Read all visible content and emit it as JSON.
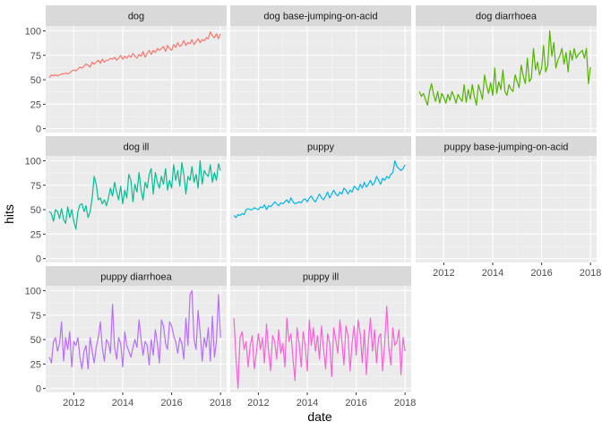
{
  "chart_data": {
    "type": "line",
    "xlabel": "date",
    "ylabel": "hits",
    "ylim": [
      -4,
      105
    ],
    "y_ticks": [
      0,
      25,
      50,
      75,
      100
    ],
    "x_ticks": [
      "2012",
      "2014",
      "2016",
      "2018"
    ],
    "x_range": [
      2010.85,
      2018.25
    ],
    "layout": "facet grid, 3 columns, 3 rows",
    "background": "#EBEBEB",
    "grid": "on",
    "legend": "none",
    "panels": [
      {
        "name": "dog",
        "color": "#F8766D",
        "x": [
          2011.0,
          2011.083,
          2011.167,
          2011.25,
          2011.333,
          2011.417,
          2011.5,
          2011.583,
          2011.667,
          2011.75,
          2011.833,
          2011.917,
          2012.0,
          2012.083,
          2012.167,
          2012.25,
          2012.333,
          2012.417,
          2012.5,
          2012.583,
          2012.667,
          2012.75,
          2012.833,
          2012.917,
          2013.0,
          2013.083,
          2013.167,
          2013.25,
          2013.333,
          2013.417,
          2013.5,
          2013.583,
          2013.667,
          2013.75,
          2013.833,
          2013.917,
          2014.0,
          2014.083,
          2014.167,
          2014.25,
          2014.333,
          2014.417,
          2014.5,
          2014.583,
          2014.667,
          2014.75,
          2014.833,
          2014.917,
          2015.0,
          2015.083,
          2015.167,
          2015.25,
          2015.333,
          2015.417,
          2015.5,
          2015.583,
          2015.667,
          2015.75,
          2015.833,
          2015.917,
          2016.0,
          2016.083,
          2016.167,
          2016.25,
          2016.333,
          2016.417,
          2016.5,
          2016.583,
          2016.667,
          2016.75,
          2016.833,
          2016.917,
          2017.0,
          2017.083,
          2017.167,
          2017.25,
          2017.333,
          2017.417,
          2017.5,
          2017.583,
          2017.667,
          2017.75,
          2017.833,
          2017.917,
          2018.0
        ],
        "y": [
          52,
          55,
          54,
          55,
          54,
          55,
          56,
          56,
          57,
          56,
          57,
          59,
          60,
          59,
          61,
          63,
          62,
          64,
          66,
          65,
          63,
          68,
          66,
          68,
          70,
          67,
          71,
          68,
          70,
          70,
          72,
          71,
          73,
          70,
          72,
          75,
          71,
          74,
          72,
          75,
          73,
          77,
          74,
          72,
          76,
          74,
          79,
          73,
          77,
          80,
          76,
          80,
          78,
          82,
          80,
          82,
          84,
          79,
          85,
          82,
          80,
          86,
          83,
          88,
          84,
          86,
          90,
          85,
          88,
          87,
          91,
          86,
          89,
          92,
          88,
          91,
          90,
          93,
          92,
          99,
          95,
          93,
          97,
          92,
          97
        ]
      },
      {
        "name": "dog base-jumping-on-acid",
        "color": "#C49A00",
        "x": [],
        "y": []
      },
      {
        "name": "dog diarrhoea",
        "color": "#53B400",
        "x": [
          2011.0,
          2011.083,
          2011.167,
          2011.25,
          2011.333,
          2011.417,
          2011.5,
          2011.583,
          2011.667,
          2011.75,
          2011.833,
          2011.917,
          2012.0,
          2012.083,
          2012.167,
          2012.25,
          2012.333,
          2012.417,
          2012.5,
          2012.583,
          2012.667,
          2012.75,
          2012.833,
          2012.917,
          2013.0,
          2013.083,
          2013.167,
          2013.25,
          2013.333,
          2013.417,
          2013.5,
          2013.583,
          2013.667,
          2013.75,
          2013.833,
          2013.917,
          2014.0,
          2014.083,
          2014.167,
          2014.25,
          2014.333,
          2014.417,
          2014.5,
          2014.583,
          2014.667,
          2014.75,
          2014.833,
          2014.917,
          2015.0,
          2015.083,
          2015.167,
          2015.25,
          2015.333,
          2015.417,
          2015.5,
          2015.583,
          2015.667,
          2015.75,
          2015.833,
          2015.917,
          2016.0,
          2016.083,
          2016.167,
          2016.25,
          2016.333,
          2016.417,
          2016.5,
          2016.583,
          2016.667,
          2016.75,
          2016.833,
          2016.917,
          2017.0,
          2017.083,
          2017.167,
          2017.25,
          2017.333,
          2017.417,
          2017.5,
          2017.583,
          2017.667,
          2017.75,
          2017.833,
          2017.917,
          2018.0
        ],
        "y": [
          38,
          33,
          36,
          30,
          24,
          38,
          46,
          35,
          28,
          38,
          26,
          36,
          32,
          26,
          35,
          29,
          38,
          33,
          26,
          35,
          31,
          28,
          45,
          27,
          40,
          30,
          45,
          33,
          24,
          45,
          38,
          30,
          55,
          44,
          36,
          47,
          34,
          62,
          36,
          48,
          40,
          60,
          38,
          34,
          45,
          40,
          38,
          55,
          48,
          42,
          65,
          54,
          46,
          72,
          48,
          52,
          82,
          60,
          68,
          55,
          62,
          85,
          58,
          64,
          100,
          74,
          88,
          62,
          70,
          75,
          82,
          66,
          78,
          58,
          80,
          70,
          82,
          72,
          76,
          78,
          80,
          72,
          82,
          46,
          63
        ]
      },
      {
        "name": "dog ill",
        "color": "#00C094",
        "x": [
          2011.0,
          2011.083,
          2011.167,
          2011.25,
          2011.333,
          2011.417,
          2011.5,
          2011.583,
          2011.667,
          2011.75,
          2011.833,
          2011.917,
          2012.0,
          2012.083,
          2012.167,
          2012.25,
          2012.333,
          2012.417,
          2012.5,
          2012.583,
          2012.667,
          2012.75,
          2012.833,
          2012.917,
          2013.0,
          2013.083,
          2013.167,
          2013.25,
          2013.333,
          2013.417,
          2013.5,
          2013.583,
          2013.667,
          2013.75,
          2013.833,
          2013.917,
          2014.0,
          2014.083,
          2014.167,
          2014.25,
          2014.333,
          2014.417,
          2014.5,
          2014.583,
          2014.667,
          2014.75,
          2014.833,
          2014.917,
          2015.0,
          2015.083,
          2015.167,
          2015.25,
          2015.333,
          2015.417,
          2015.5,
          2015.583,
          2015.667,
          2015.75,
          2015.833,
          2015.917,
          2016.0,
          2016.083,
          2016.167,
          2016.25,
          2016.333,
          2016.417,
          2016.5,
          2016.583,
          2016.667,
          2016.75,
          2016.833,
          2016.917,
          2017.0,
          2017.083,
          2017.167,
          2017.25,
          2017.333,
          2017.417,
          2017.5,
          2017.583,
          2017.667,
          2017.75,
          2017.833,
          2017.917,
          2018.0
        ],
        "y": [
          48,
          46,
          38,
          50,
          48,
          41,
          51,
          40,
          36,
          53,
          42,
          50,
          38,
          30,
          48,
          55,
          56,
          48,
          54,
          42,
          48,
          62,
          84,
          76,
          60,
          62,
          56,
          60,
          54,
          62,
          72,
          64,
          78,
          68,
          60,
          74,
          56,
          70,
          62,
          86,
          80,
          58,
          76,
          68,
          88,
          70,
          60,
          78,
          72,
          86,
          92,
          66,
          88,
          78,
          72,
          84,
          76,
          92,
          70,
          80,
          72,
          96,
          80,
          90,
          74,
          98,
          86,
          66,
          84,
          80,
          94,
          78,
          86,
          72,
          100,
          76,
          90,
          86,
          84,
          96,
          78,
          88,
          80,
          97,
          90
        ]
      },
      {
        "name": "puppy",
        "color": "#00B6EB",
        "x": [
          2011.0,
          2011.083,
          2011.167,
          2011.25,
          2011.333,
          2011.417,
          2011.5,
          2011.583,
          2011.667,
          2011.75,
          2011.833,
          2011.917,
          2012.0,
          2012.083,
          2012.167,
          2012.25,
          2012.333,
          2012.417,
          2012.5,
          2012.583,
          2012.667,
          2012.75,
          2012.833,
          2012.917,
          2013.0,
          2013.083,
          2013.167,
          2013.25,
          2013.333,
          2013.417,
          2013.5,
          2013.583,
          2013.667,
          2013.75,
          2013.833,
          2013.917,
          2014.0,
          2014.083,
          2014.167,
          2014.25,
          2014.333,
          2014.417,
          2014.5,
          2014.583,
          2014.667,
          2014.75,
          2014.833,
          2014.917,
          2015.0,
          2015.083,
          2015.167,
          2015.25,
          2015.333,
          2015.417,
          2015.5,
          2015.583,
          2015.667,
          2015.75,
          2015.833,
          2015.917,
          2016.0,
          2016.083,
          2016.167,
          2016.25,
          2016.333,
          2016.417,
          2016.5,
          2016.583,
          2016.667,
          2016.75,
          2016.833,
          2016.917,
          2017.0,
          2017.083,
          2017.167,
          2017.25,
          2017.333,
          2017.417,
          2017.5,
          2017.583,
          2017.667,
          2017.75,
          2017.833,
          2017.917,
          2018.0
        ],
        "y": [
          44,
          42,
          45,
          44,
          46,
          45,
          50,
          51,
          50,
          50,
          52,
          51,
          50,
          53,
          52,
          55,
          50,
          54,
          53,
          55,
          58,
          56,
          54,
          57,
          56,
          58,
          60,
          57,
          62,
          58,
          56,
          57,
          58,
          57,
          60,
          61,
          58,
          62,
          64,
          60,
          58,
          62,
          66,
          62,
          60,
          64,
          68,
          62,
          66,
          70,
          66,
          64,
          68,
          66,
          72,
          70,
          66,
          70,
          68,
          74,
          72,
          70,
          76,
          72,
          78,
          73,
          76,
          80,
          75,
          78,
          84,
          80,
          76,
          82,
          80,
          84,
          82,
          86,
          88,
          100,
          94,
          92,
          90,
          92,
          96
        ]
      },
      {
        "name": "puppy base-jumping-on-acid",
        "color": "#A58AFF",
        "x": [],
        "y": []
      },
      {
        "name": "puppy diarrhoea",
        "color": "#B76EFF",
        "x": [
          2011.0,
          2011.083,
          2011.167,
          2011.25,
          2011.333,
          2011.417,
          2011.5,
          2011.583,
          2011.667,
          2011.75,
          2011.833,
          2011.917,
          2012.0,
          2012.083,
          2012.167,
          2012.25,
          2012.333,
          2012.417,
          2012.5,
          2012.583,
          2012.667,
          2012.75,
          2012.833,
          2012.917,
          2013.0,
          2013.083,
          2013.167,
          2013.25,
          2013.333,
          2013.417,
          2013.5,
          2013.583,
          2013.667,
          2013.75,
          2013.833,
          2013.917,
          2014.0,
          2014.083,
          2014.167,
          2014.25,
          2014.333,
          2014.417,
          2014.5,
          2014.583,
          2014.667,
          2014.75,
          2014.833,
          2014.917,
          2015.0,
          2015.083,
          2015.167,
          2015.25,
          2015.333,
          2015.417,
          2015.5,
          2015.583,
          2015.667,
          2015.75,
          2015.833,
          2015.917,
          2016.0,
          2016.083,
          2016.167,
          2016.25,
          2016.333,
          2016.417,
          2016.5,
          2016.583,
          2016.667,
          2016.75,
          2016.833,
          2016.917,
          2017.0,
          2017.083,
          2017.167,
          2017.25,
          2017.333,
          2017.417,
          2017.5,
          2017.583,
          2017.667,
          2017.75,
          2017.833,
          2017.917,
          2018.0
        ],
        "y": [
          32,
          26,
          48,
          52,
          38,
          46,
          68,
          28,
          52,
          40,
          58,
          22,
          48,
          44,
          52,
          32,
          20,
          38,
          44,
          20,
          52,
          38,
          26,
          42,
          52,
          68,
          42,
          28,
          50,
          46,
          36,
          86,
          42,
          30,
          52,
          46,
          22,
          58,
          44,
          38,
          32,
          42,
          50,
          42,
          70,
          50,
          34,
          48,
          44,
          24,
          50,
          34,
          60,
          46,
          26,
          70,
          64,
          46,
          40,
          68,
          64,
          54,
          48,
          36,
          52,
          46,
          30,
          72,
          44,
          96,
          100,
          50,
          40,
          80,
          58,
          28,
          52,
          42,
          62,
          28,
          74,
          32,
          48,
          96,
          52
        ]
      },
      {
        "name": "puppy ill",
        "color": "#FB61D7",
        "x": [
          2011.0,
          2011.083,
          2011.167,
          2011.25,
          2011.333,
          2011.417,
          2011.5,
          2011.583,
          2011.667,
          2011.75,
          2011.833,
          2011.917,
          2012.0,
          2012.083,
          2012.167,
          2012.25,
          2012.333,
          2012.417,
          2012.5,
          2012.583,
          2012.667,
          2012.75,
          2012.833,
          2012.917,
          2013.0,
          2013.083,
          2013.167,
          2013.25,
          2013.333,
          2013.417,
          2013.5,
          2013.583,
          2013.667,
          2013.75,
          2013.833,
          2013.917,
          2014.0,
          2014.083,
          2014.167,
          2014.25,
          2014.333,
          2014.417,
          2014.5,
          2014.583,
          2014.667,
          2014.75,
          2014.833,
          2014.917,
          2015.0,
          2015.083,
          2015.167,
          2015.25,
          2015.333,
          2015.417,
          2015.5,
          2015.583,
          2015.667,
          2015.75,
          2015.833,
          2015.917,
          2016.0,
          2016.083,
          2016.167,
          2016.25,
          2016.333,
          2016.417,
          2016.5,
          2016.583,
          2016.667,
          2016.75,
          2016.833,
          2016.917,
          2017.0,
          2017.083,
          2017.167,
          2017.25,
          2017.333,
          2017.417,
          2017.5,
          2017.583,
          2017.667,
          2017.75,
          2017.833,
          2017.917,
          2018.0
        ],
        "y": [
          72,
          32,
          0,
          52,
          58,
          40,
          48,
          22,
          44,
          54,
          20,
          36,
          56,
          40,
          52,
          26,
          66,
          38,
          18,
          54,
          48,
          30,
          60,
          36,
          46,
          22,
          72,
          48,
          56,
          30,
          8,
          62,
          46,
          22,
          58,
          44,
          18,
          70,
          44,
          62,
          38,
          54,
          30,
          64,
          40,
          20,
          56,
          46,
          12,
          62,
          50,
          36,
          70,
          48,
          24,
          64,
          54,
          18,
          46,
          64,
          34,
          70,
          56,
          26,
          60,
          14,
          48,
          72,
          38,
          60,
          26,
          52,
          56,
          18,
          46,
          84,
          42,
          24,
          62,
          44,
          48,
          60,
          14,
          52,
          38
        ]
      }
    ]
  }
}
